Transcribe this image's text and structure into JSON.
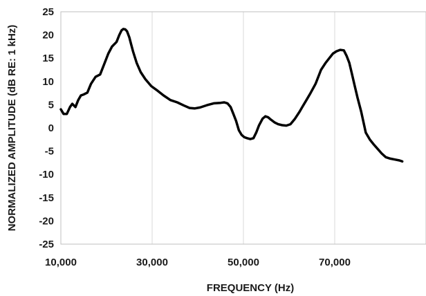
{
  "chart_data": {
    "type": "line",
    "title": "",
    "xlabel": "FREQUENCY (Hz)",
    "ylabel": "NORMALIZED AMPLITUDE (dB RE: 1 kHz)",
    "xlim": [
      10000,
      90000
    ],
    "ylim": [
      -25,
      25
    ],
    "x_ticks": [
      10000,
      30000,
      50000,
      70000
    ],
    "x_tick_labels": [
      "10,000",
      "30,000",
      "50,000",
      "70,000"
    ],
    "y_ticks": [
      25,
      20,
      15,
      10,
      5,
      0,
      -5,
      -10,
      -15,
      -20,
      -25
    ],
    "y_tick_labels": [
      "25",
      "20",
      "15",
      "10",
      "5",
      "0",
      "-5",
      "-10",
      "-15",
      "-20",
      "-25"
    ],
    "grid": "vertical",
    "legend": "none",
    "line_color": "#000000",
    "series": [
      {
        "x": [
          10000,
          10600,
          11300,
          12000,
          12500,
          13200,
          13800,
          14400,
          15000,
          15800,
          16600,
          17600,
          18600,
          19600,
          20400,
          21200,
          22200,
          22800,
          23300,
          23700,
          24100,
          24500,
          25000,
          25400,
          25800,
          26600,
          27500,
          28500,
          29800,
          31200,
          32500,
          34000,
          35500,
          37000,
          38200,
          39300,
          40500,
          42000,
          43500,
          45000,
          45800,
          46500,
          47200,
          47800,
          48400,
          49000,
          49600,
          50200,
          50800,
          51500,
          52200,
          52800,
          53400,
          54200,
          54800,
          55400,
          56000,
          56800,
          57600,
          58500,
          59400,
          60300,
          61300,
          62300,
          62900,
          63800,
          64700,
          65800,
          67000,
          68000,
          68800,
          69600,
          70400,
          71200,
          72000,
          72600,
          73200,
          73800,
          74400,
          75000,
          75800,
          76800,
          77700,
          78500,
          79400,
          80300,
          81200,
          82200,
          83200,
          84200,
          84800
        ],
        "y": [
          4,
          3,
          3,
          4.5,
          5.2,
          4.5,
          6,
          7,
          7.2,
          7.6,
          9.5,
          11,
          11.5,
          14,
          16,
          17.5,
          18.5,
          20,
          21,
          21.3,
          21.2,
          20.8,
          19.5,
          18,
          16.5,
          14,
          12,
          10.5,
          9,
          8,
          7,
          6,
          5.5,
          4.8,
          4.3,
          4.2,
          4.4,
          4.9,
          5.3,
          5.4,
          5.5,
          5.3,
          4.5,
          3,
          1.5,
          -0.5,
          -1.5,
          -2,
          -2.2,
          -2.4,
          -2.2,
          -1,
          0.5,
          2,
          2.5,
          2.3,
          1.8,
          1.2,
          0.8,
          0.6,
          0.5,
          0.8,
          2,
          3.5,
          4.5,
          6,
          7.5,
          9.5,
          12.5,
          14,
          15,
          16,
          16.5,
          16.8,
          16.7,
          15.5,
          14,
          11.5,
          9,
          6.5,
          3.5,
          -1,
          -2.5,
          -3.5,
          -4.5,
          -5.5,
          -6.3,
          -6.6,
          -6.8,
          -7,
          -7.2
        ]
      }
    ]
  }
}
